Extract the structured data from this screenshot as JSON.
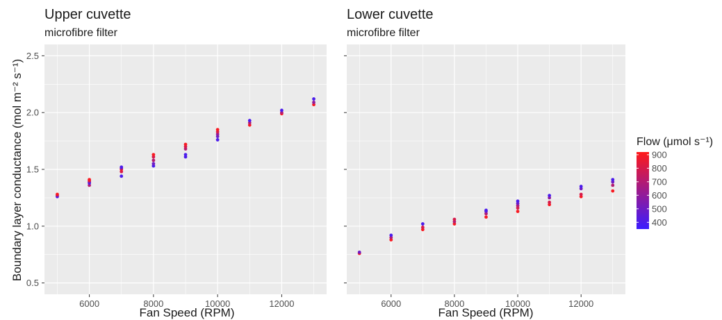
{
  "chart_data": [
    {
      "type": "scatter",
      "title": "Upper cuvette",
      "subtitle": "microfibre filter",
      "xlabel": "Fan Speed (RPM)",
      "ylabel": "Boundary layer conductance (mol m⁻² s⁻¹)",
      "xlim": [
        4600,
        13400
      ],
      "ylim": [
        0.4,
        2.6
      ],
      "xticks": [
        6000,
        8000,
        10000,
        12000
      ],
      "xtick_labels": [
        "6000",
        "8000",
        "10000",
        "12000"
      ],
      "yticks": [
        0.5,
        1.0,
        1.5,
        2.0,
        2.5
      ],
      "ytick_labels": [
        "0.5",
        "1.0",
        "1.5",
        "2.0",
        "2.5"
      ],
      "grid": true,
      "points": [
        {
          "x": 5000,
          "y": 1.26,
          "flow": 400
        },
        {
          "x": 5000,
          "y": 1.27,
          "flow": 600
        },
        {
          "x": 5000,
          "y": 1.28,
          "flow": 900
        },
        {
          "x": 6000,
          "y": 1.36,
          "flow": 700
        },
        {
          "x": 6000,
          "y": 1.38,
          "flow": 400
        },
        {
          "x": 6000,
          "y": 1.39,
          "flow": 500
        },
        {
          "x": 6000,
          "y": 1.4,
          "flow": 800
        },
        {
          "x": 6000,
          "y": 1.41,
          "flow": 900
        },
        {
          "x": 7000,
          "y": 1.44,
          "flow": 400
        },
        {
          "x": 7000,
          "y": 1.48,
          "flow": 800
        },
        {
          "x": 7000,
          "y": 1.5,
          "flow": 900
        },
        {
          "x": 7000,
          "y": 1.51,
          "flow": 600
        },
        {
          "x": 7000,
          "y": 1.52,
          "flow": 400
        },
        {
          "x": 8000,
          "y": 1.53,
          "flow": 400
        },
        {
          "x": 8000,
          "y": 1.55,
          "flow": 500
        },
        {
          "x": 8000,
          "y": 1.58,
          "flow": 700
        },
        {
          "x": 8000,
          "y": 1.61,
          "flow": 800
        },
        {
          "x": 8000,
          "y": 1.63,
          "flow": 900
        },
        {
          "x": 9000,
          "y": 1.61,
          "flow": 400
        },
        {
          "x": 9000,
          "y": 1.63,
          "flow": 400
        },
        {
          "x": 9000,
          "y": 1.68,
          "flow": 700
        },
        {
          "x": 9000,
          "y": 1.7,
          "flow": 800
        },
        {
          "x": 9000,
          "y": 1.72,
          "flow": 900
        },
        {
          "x": 10000,
          "y": 1.76,
          "flow": 400
        },
        {
          "x": 10000,
          "y": 1.79,
          "flow": 500
        },
        {
          "x": 10000,
          "y": 1.81,
          "flow": 600
        },
        {
          "x": 10000,
          "y": 1.83,
          "flow": 800
        },
        {
          "x": 10000,
          "y": 1.85,
          "flow": 900
        },
        {
          "x": 11000,
          "y": 1.89,
          "flow": 900
        },
        {
          "x": 11000,
          "y": 1.91,
          "flow": 700
        },
        {
          "x": 11000,
          "y": 1.93,
          "flow": 400
        },
        {
          "x": 12000,
          "y": 1.99,
          "flow": 900
        },
        {
          "x": 12000,
          "y": 2.0,
          "flow": 700
        },
        {
          "x": 12000,
          "y": 2.02,
          "flow": 400
        },
        {
          "x": 13000,
          "y": 2.07,
          "flow": 900
        },
        {
          "x": 13000,
          "y": 2.09,
          "flow": 600
        },
        {
          "x": 13000,
          "y": 2.12,
          "flow": 400
        }
      ]
    },
    {
      "type": "scatter",
      "title": "Lower cuvette",
      "subtitle": "microfibre filter",
      "xlabel": "Fan Speed (RPM)",
      "ylabel": "",
      "xlim": [
        4600,
        13400
      ],
      "ylim": [
        0.4,
        2.6
      ],
      "xticks": [
        6000,
        8000,
        10000,
        12000
      ],
      "xtick_labels": [
        "6000",
        "8000",
        "10000",
        "12000"
      ],
      "yticks": [
        0.5,
        1.0,
        1.5,
        2.0,
        2.5
      ],
      "ytick_labels": [],
      "grid": true,
      "points": [
        {
          "x": 5000,
          "y": 0.76,
          "flow": 900
        },
        {
          "x": 5000,
          "y": 0.77,
          "flow": 500
        },
        {
          "x": 6000,
          "y": 0.88,
          "flow": 900
        },
        {
          "x": 6000,
          "y": 0.9,
          "flow": 700
        },
        {
          "x": 6000,
          "y": 0.92,
          "flow": 400
        },
        {
          "x": 7000,
          "y": 0.97,
          "flow": 900
        },
        {
          "x": 7000,
          "y": 0.99,
          "flow": 800
        },
        {
          "x": 7000,
          "y": 1.02,
          "flow": 400
        },
        {
          "x": 8000,
          "y": 1.02,
          "flow": 900
        },
        {
          "x": 8000,
          "y": 1.04,
          "flow": 700
        },
        {
          "x": 8000,
          "y": 1.06,
          "flow": 800
        },
        {
          "x": 9000,
          "y": 1.08,
          "flow": 900
        },
        {
          "x": 9000,
          "y": 1.11,
          "flow": 700
        },
        {
          "x": 9000,
          "y": 1.13,
          "flow": 500
        },
        {
          "x": 9000,
          "y": 1.14,
          "flow": 400
        },
        {
          "x": 10000,
          "y": 1.13,
          "flow": 900
        },
        {
          "x": 10000,
          "y": 1.16,
          "flow": 800
        },
        {
          "x": 10000,
          "y": 1.18,
          "flow": 700
        },
        {
          "x": 10000,
          "y": 1.2,
          "flow": 500
        },
        {
          "x": 10000,
          "y": 1.22,
          "flow": 400
        },
        {
          "x": 11000,
          "y": 1.19,
          "flow": 900
        },
        {
          "x": 11000,
          "y": 1.21,
          "flow": 800
        },
        {
          "x": 11000,
          "y": 1.25,
          "flow": 600
        },
        {
          "x": 11000,
          "y": 1.27,
          "flow": 400
        },
        {
          "x": 12000,
          "y": 1.26,
          "flow": 900
        },
        {
          "x": 12000,
          "y": 1.28,
          "flow": 800
        },
        {
          "x": 12000,
          "y": 1.33,
          "flow": 500
        },
        {
          "x": 12000,
          "y": 1.35,
          "flow": 400
        },
        {
          "x": 13000,
          "y": 1.31,
          "flow": 900
        },
        {
          "x": 13000,
          "y": 1.36,
          "flow": 700
        },
        {
          "x": 13000,
          "y": 1.39,
          "flow": 500
        },
        {
          "x": 13000,
          "y": 1.41,
          "flow": 400
        }
      ]
    }
  ],
  "legend": {
    "title": "Flow (μmol s⁻¹)",
    "labels": [
      "900",
      "800",
      "700",
      "600",
      "500",
      "400"
    ],
    "values": [
      900,
      800,
      700,
      600,
      500,
      400
    ],
    "range": [
      350,
      920
    ],
    "color_low": "#3a1cff",
    "color_high": "#ff1a1a"
  },
  "colors": {
    "panel_bg": "#ebebeb",
    "grid": "#ffffff",
    "low": "#3a1cff",
    "high": "#ff1a1a"
  }
}
